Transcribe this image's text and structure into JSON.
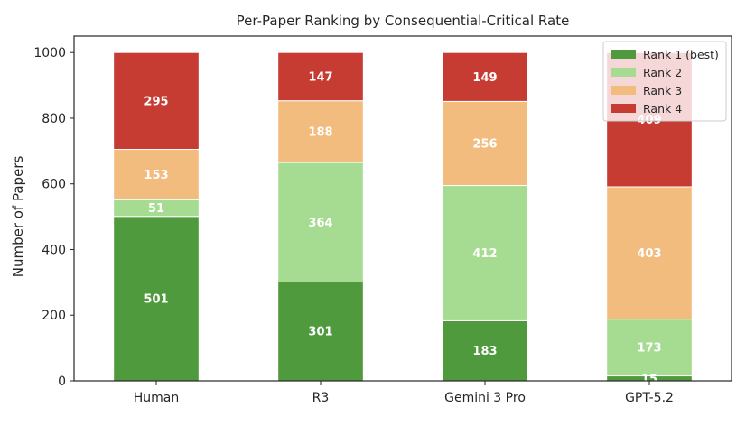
{
  "chart_data": {
    "type": "bar",
    "stacked": true,
    "title": "Per-Paper Ranking by Consequential-Critical Rate",
    "xlabel": "",
    "ylabel": "Number of Papers",
    "ylim": [
      0,
      1050
    ],
    "yticks": [
      0,
      200,
      400,
      600,
      800,
      1000
    ],
    "categories": [
      "Human",
      "R3",
      "Gemini 3 Pro",
      "GPT-5.2"
    ],
    "series": [
      {
        "name": "Rank 1 (best)",
        "color": "#4e9a3d",
        "values": [
          501,
          301,
          183,
          15
        ]
      },
      {
        "name": "Rank 2",
        "color": "#a6dc92",
        "values": [
          51,
          364,
          412,
          173
        ]
      },
      {
        "name": "Rank 3",
        "color": "#f3bc7f",
        "values": [
          153,
          188,
          256,
          403
        ]
      },
      {
        "name": "Rank 4",
        "color": "#c63b32",
        "values": [
          295,
          147,
          149,
          409
        ]
      }
    ],
    "grid": false,
    "legend_position": "top-right"
  }
}
